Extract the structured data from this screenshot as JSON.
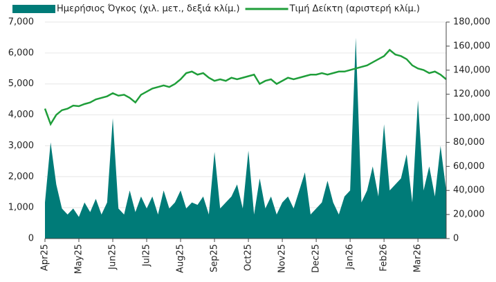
{
  "chart_data": {
    "type": "area_line",
    "categories": [
      "Apr25",
      null,
      null,
      null,
      null,
      null,
      "May25",
      null,
      null,
      null,
      null,
      null,
      "Jun25",
      null,
      null,
      null,
      null,
      null,
      "Jul25",
      null,
      null,
      null,
      null,
      null,
      "Aug25",
      null,
      null,
      null,
      null,
      null,
      "Sep25",
      null,
      null,
      null,
      null,
      null,
      "Oct25",
      null,
      null,
      null,
      null,
      null,
      "Nov25",
      null,
      null,
      null,
      null,
      null,
      "Dec25",
      null,
      null,
      null,
      null,
      null,
      "Jan26",
      null,
      null,
      null,
      null,
      null,
      "Feb26",
      null,
      null,
      null,
      null,
      null,
      "Mar26",
      null,
      null,
      null,
      null,
      null
    ],
    "series": [
      {
        "name": "Ημερήσιος Όγκος (χιλ. μετ., δεξιά κλίμ.)",
        "color": "#007b78",
        "type": "area",
        "axis": "y2",
        "values": [
          30000,
          80000,
          45000,
          25000,
          20000,
          25000,
          18000,
          30000,
          22000,
          33000,
          20000,
          30000,
          100000,
          25000,
          20000,
          40000,
          22000,
          35000,
          25000,
          35000,
          20000,
          40000,
          25000,
          30000,
          40000,
          25000,
          30000,
          28000,
          35000,
          20000,
          72000,
          25000,
          30000,
          35000,
          45000,
          25000,
          73000,
          20000,
          50000,
          25000,
          35000,
          20000,
          30000,
          35000,
          25000,
          40000,
          55000,
          20000,
          25000,
          30000,
          48000,
          30000,
          20000,
          35000,
          40000,
          167000,
          30000,
          40000,
          60000,
          35000,
          95000,
          40000,
          45000,
          50000,
          70000,
          30000,
          115000,
          40000,
          60000,
          35000,
          77000,
          40000
        ]
      },
      {
        "name": "Τιμή Δείκτη (αριστερή κλίμ.)",
        "color": "#1f9e3a",
        "type": "line",
        "values": [
          4200,
          3700,
          4000,
          4150,
          4200,
          4300,
          4280,
          4350,
          4400,
          4500,
          4550,
          4600,
          4700,
          4620,
          4650,
          4550,
          4400,
          4650,
          4750,
          4850,
          4900,
          4950,
          4900,
          5000,
          5150,
          5350,
          5400,
          5300,
          5350,
          5200,
          5100,
          5150,
          5100,
          5200,
          5150,
          5200,
          5250,
          5300,
          5000,
          5100,
          5150,
          5000,
          5100,
          5200,
          5150,
          5200,
          5250,
          5300,
          5300,
          5350,
          5300,
          5350,
          5400,
          5400,
          5450,
          5500,
          5550,
          5600,
          5700,
          5800,
          5900,
          6100,
          5950,
          5900,
          5800,
          5600,
          5500,
          5450,
          5350,
          5400,
          5300,
          5150
        ]
      }
    ],
    "ylim": [
      0,
      7000
    ],
    "yticks": [
      0,
      {
        "value": 1000,
        "label": "1,000"
      },
      {
        "value": 2000,
        "label": "2,000"
      },
      {
        "value": 3000,
        "label": "3,000"
      },
      {
        "value": 4000,
        "label": "4,000"
      },
      {
        "value": 5000,
        "label": "5,000"
      },
      {
        "value": 6000,
        "label": "6,000"
      },
      {
        "value": 7000,
        "label": "7,000"
      }
    ],
    "y2lim": [
      0,
      180000
    ],
    "y2ticks": [
      0,
      {
        "value": 20000,
        "label": "20,000"
      },
      {
        "value": 40000,
        "label": "40,000"
      },
      {
        "value": 60000,
        "label": "60,000"
      },
      {
        "value": 80000,
        "label": "80,000"
      },
      {
        "value": 100000,
        "label": "100,000"
      },
      {
        "value": 120000,
        "label": "120,000"
      },
      {
        "value": 140000,
        "label": "140,000"
      },
      {
        "value": 160000,
        "label": "160,000"
      },
      {
        "value": 180000,
        "label": "180,000"
      }
    ],
    "grid": true,
    "legend": "top"
  }
}
